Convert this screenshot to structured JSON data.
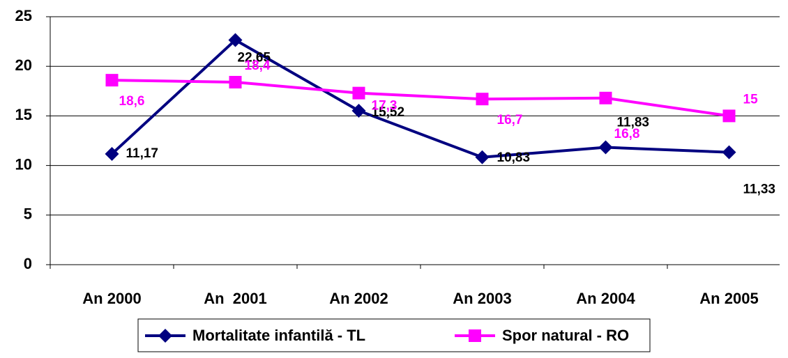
{
  "chart_data": {
    "type": "line",
    "categories": [
      "An 2000",
      "An  2001",
      "An 2002",
      "An 2003",
      "An 2004",
      "An 2005"
    ],
    "series": [
      {
        "name": "Mortalitate infantilă - TL",
        "color": "#000080",
        "label_color": "#000000",
        "values": [
          11.17,
          22.65,
          15.52,
          10.83,
          11.83,
          11.33
        ],
        "value_labels": [
          "11,17",
          "22,65",
          "15,52",
          "10,83",
          "11,83",
          "11,33"
        ]
      },
      {
        "name": "Spor natural - RO",
        "color": "#ff00ff",
        "label_color": "#ff00ff",
        "values": [
          18.6,
          18.4,
          17.3,
          16.7,
          16.8,
          15
        ],
        "value_labels": [
          "18,6",
          "18,4",
          "17,3",
          "16,7",
          "16,8",
          "15"
        ]
      }
    ],
    "ylim": [
      0,
      25
    ],
    "yticks": [
      0,
      5,
      10,
      15,
      20,
      25
    ],
    "grid": true,
    "legend": "bottom"
  }
}
